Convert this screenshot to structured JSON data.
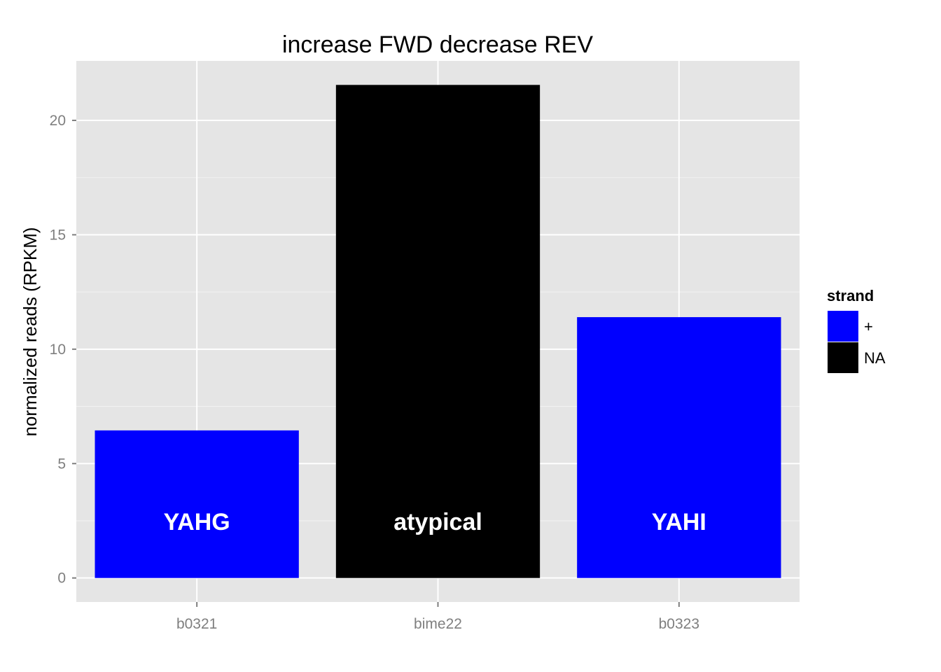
{
  "chart_data": {
    "type": "bar",
    "title": "increase FWD decrease REV",
    "xlabel": "",
    "ylabel": "normalized reads (RPKM)",
    "categories": [
      "b0321",
      "bime22",
      "b0323"
    ],
    "values": [
      6.45,
      21.55,
      11.4
    ],
    "bar_labels": [
      "YAHG",
      "atypical",
      "YAHI"
    ],
    "strand": [
      "+",
      "NA",
      "+"
    ],
    "ylim": [
      -1.05,
      22.6
    ],
    "yticks": [
      0,
      5,
      10,
      15,
      20
    ],
    "grid": true,
    "legend": {
      "title": "strand",
      "position": "right",
      "entries": [
        {
          "label": "+",
          "color": "#0000ff"
        },
        {
          "label": "NA",
          "color": "#000000"
        }
      ]
    },
    "colors": {
      "+": "#0000ff",
      "NA": "#000000"
    },
    "panel_background": "#e5e5e5",
    "grid_color": "#ffffff"
  }
}
